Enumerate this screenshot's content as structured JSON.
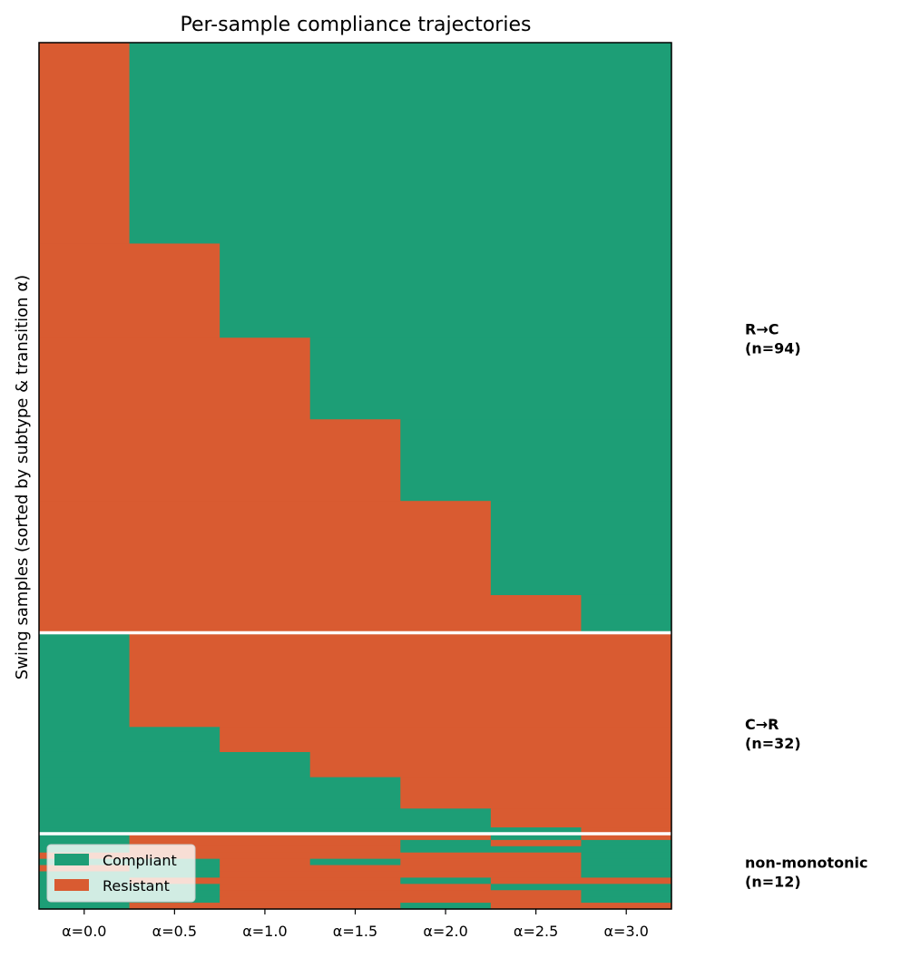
{
  "chart_data": {
    "type": "heatmap",
    "title": "Per-sample compliance trajectories",
    "ylabel": "Swing samples (sorted by subtype & transition α)",
    "xlabel": "",
    "x_categories": [
      "α=0.0",
      "α=0.5",
      "α=1.0",
      "α=1.5",
      "α=2.0",
      "α=2.5",
      "α=3.0"
    ],
    "legend": {
      "placement": "lower-left",
      "entries": [
        {
          "name": "Compliant",
          "color": "#1d9e76"
        },
        {
          "name": "Resistant",
          "color": "#d95b31"
        }
      ]
    },
    "colors": {
      "compliant": "#1d9e76",
      "resistant": "#d95b31",
      "separator": "#ffffff"
    },
    "total_rows": 138,
    "groups": [
      {
        "label": "R→C",
        "count_label": "(n=94)",
        "n": 94
      },
      {
        "label": "C→R",
        "count_label": "(n=32)",
        "n": 32
      },
      {
        "label": "non-monotonic",
        "count_label": "(n=12)",
        "n": 12
      }
    ],
    "row_blocks": [
      {
        "n": 32,
        "pattern": "RCCCCCC"
      },
      {
        "n": 15,
        "pattern": "RRCCCCC"
      },
      {
        "n": 13,
        "pattern": "RRRCCCC"
      },
      {
        "n": 13,
        "pattern": "RRRRCCC"
      },
      {
        "n": 15,
        "pattern": "RRRRRCC"
      },
      {
        "n": 6,
        "pattern": "RRRRRRC"
      },
      {
        "n": 15,
        "pattern": "CRRRRRR"
      },
      {
        "n": 4,
        "pattern": "CCRRRRR"
      },
      {
        "n": 4,
        "pattern": "CCCRRRR"
      },
      {
        "n": 5,
        "pattern": "CCCCRRR"
      },
      {
        "n": 3,
        "pattern": "CCCCCRR"
      },
      {
        "n": 1,
        "pattern": "CCCCCCR"
      },
      {
        "n": 1,
        "pattern": "CRRRRCR"
      },
      {
        "n": 1,
        "pattern": "CRRRCRC"
      },
      {
        "n": 1,
        "pattern": "CRRRCCC"
      },
      {
        "n": 1,
        "pattern": "RRRRRRC"
      },
      {
        "n": 1,
        "pattern": "CCRCRRC"
      },
      {
        "n": 1,
        "pattern": "RCRRRRC"
      },
      {
        "n": 1,
        "pattern": "CCRRRRC"
      },
      {
        "n": 1,
        "pattern": "CRRRCRR"
      },
      {
        "n": 1,
        "pattern": "CCRRRCC"
      },
      {
        "n": 1,
        "pattern": "CCRRRRC"
      },
      {
        "n": 1,
        "pattern": "CCRRRRC"
      },
      {
        "n": 1,
        "pattern": "CRRRCRR"
      }
    ]
  }
}
